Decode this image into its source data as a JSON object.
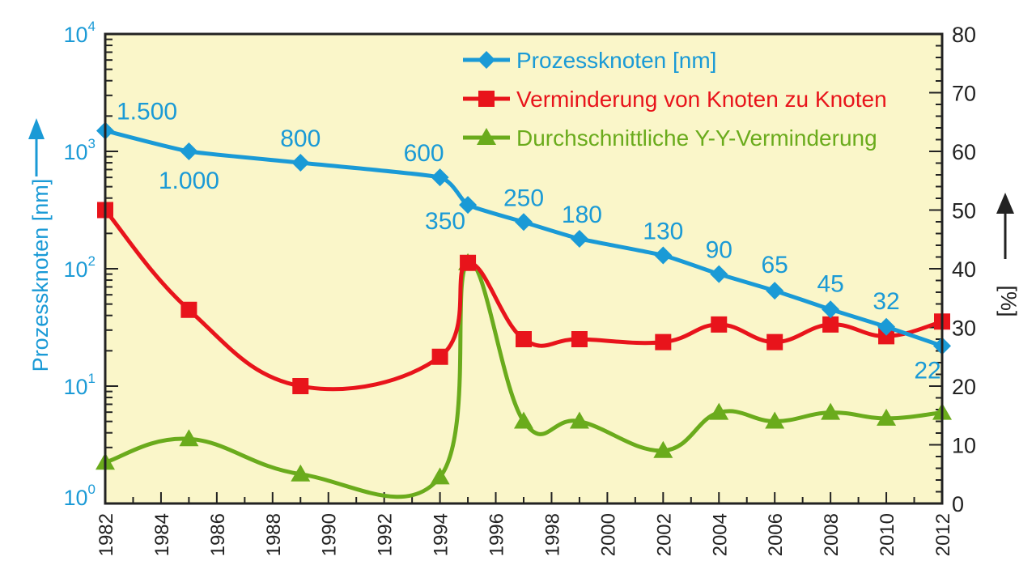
{
  "colors": {
    "plot_background": "#faf6c9",
    "blue": "#1a9ad6",
    "red": "#e8141b",
    "green": "#6aab1c",
    "axis": "#222222"
  },
  "chart_data": {
    "type": "line",
    "xlabel": "",
    "x_ticks": [
      "1982",
      "1984",
      "1986",
      "1988",
      "1990",
      "1992",
      "1994",
      "1996",
      "1998",
      "2000",
      "2002",
      "2004",
      "2006",
      "2008",
      "2010",
      "2012"
    ],
    "xlim": [
      1982,
      2012
    ],
    "y_left": {
      "label": "Prozessknoten [nm]",
      "scale": "log",
      "lim": [
        1,
        10000
      ],
      "ticks": [
        {
          "value": 1,
          "base": "10",
          "exp": "0"
        },
        {
          "value": 10,
          "base": "10",
          "exp": "1"
        },
        {
          "value": 100,
          "base": "10",
          "exp": "2"
        },
        {
          "value": 1000,
          "base": "10",
          "exp": "3"
        },
        {
          "value": 10000,
          "base": "10",
          "exp": "4"
        }
      ]
    },
    "y_right": {
      "label": "[%]",
      "scale": "linear",
      "lim": [
        0,
        80
      ],
      "ticks": [
        "0",
        "10",
        "20",
        "30",
        "40",
        "50",
        "60",
        "70",
        "80"
      ]
    },
    "legend_position": "top-right",
    "series": [
      {
        "name": "Prozessknoten [nm]",
        "axis": "left",
        "color": "#1a9ad6",
        "marker": "diamond",
        "x": [
          1982,
          1985,
          1989,
          1994,
          1995,
          1997,
          1999,
          2002,
          2004,
          2006,
          2008,
          2010,
          2012
        ],
        "y": [
          1500,
          1000,
          800,
          600,
          350,
          250,
          180,
          130,
          90,
          65,
          45,
          32,
          22
        ],
        "labels": [
          "1.500",
          "1.000",
          "800",
          "600",
          "350",
          "250",
          "180",
          "130",
          "90",
          "65",
          "45",
          "32",
          "22"
        ]
      },
      {
        "name": "Verminderung von Knoten zu Knoten",
        "axis": "right",
        "color": "#e8141b",
        "marker": "square",
        "x": [
          1982,
          1985,
          1989,
          1994,
          1995,
          1997,
          1999,
          2002,
          2004,
          2006,
          2008,
          2010,
          2012
        ],
        "y": [
          50,
          33,
          20,
          25,
          41,
          28,
          28,
          27.5,
          30.5,
          27.5,
          30.5,
          28.5,
          31
        ]
      },
      {
        "name": "Durchschnittliche Y-Y-Verminderung",
        "axis": "right",
        "color": "#6aab1c",
        "marker": "triangle",
        "x": [
          1982,
          1985,
          1989,
          1994,
          1995,
          1997,
          1999,
          2002,
          2004,
          2006,
          2008,
          2010,
          2012
        ],
        "y": [
          7,
          11,
          5,
          4.5,
          41,
          14,
          14,
          9,
          15.5,
          14,
          15.5,
          14.5,
          15.5
        ]
      }
    ]
  }
}
